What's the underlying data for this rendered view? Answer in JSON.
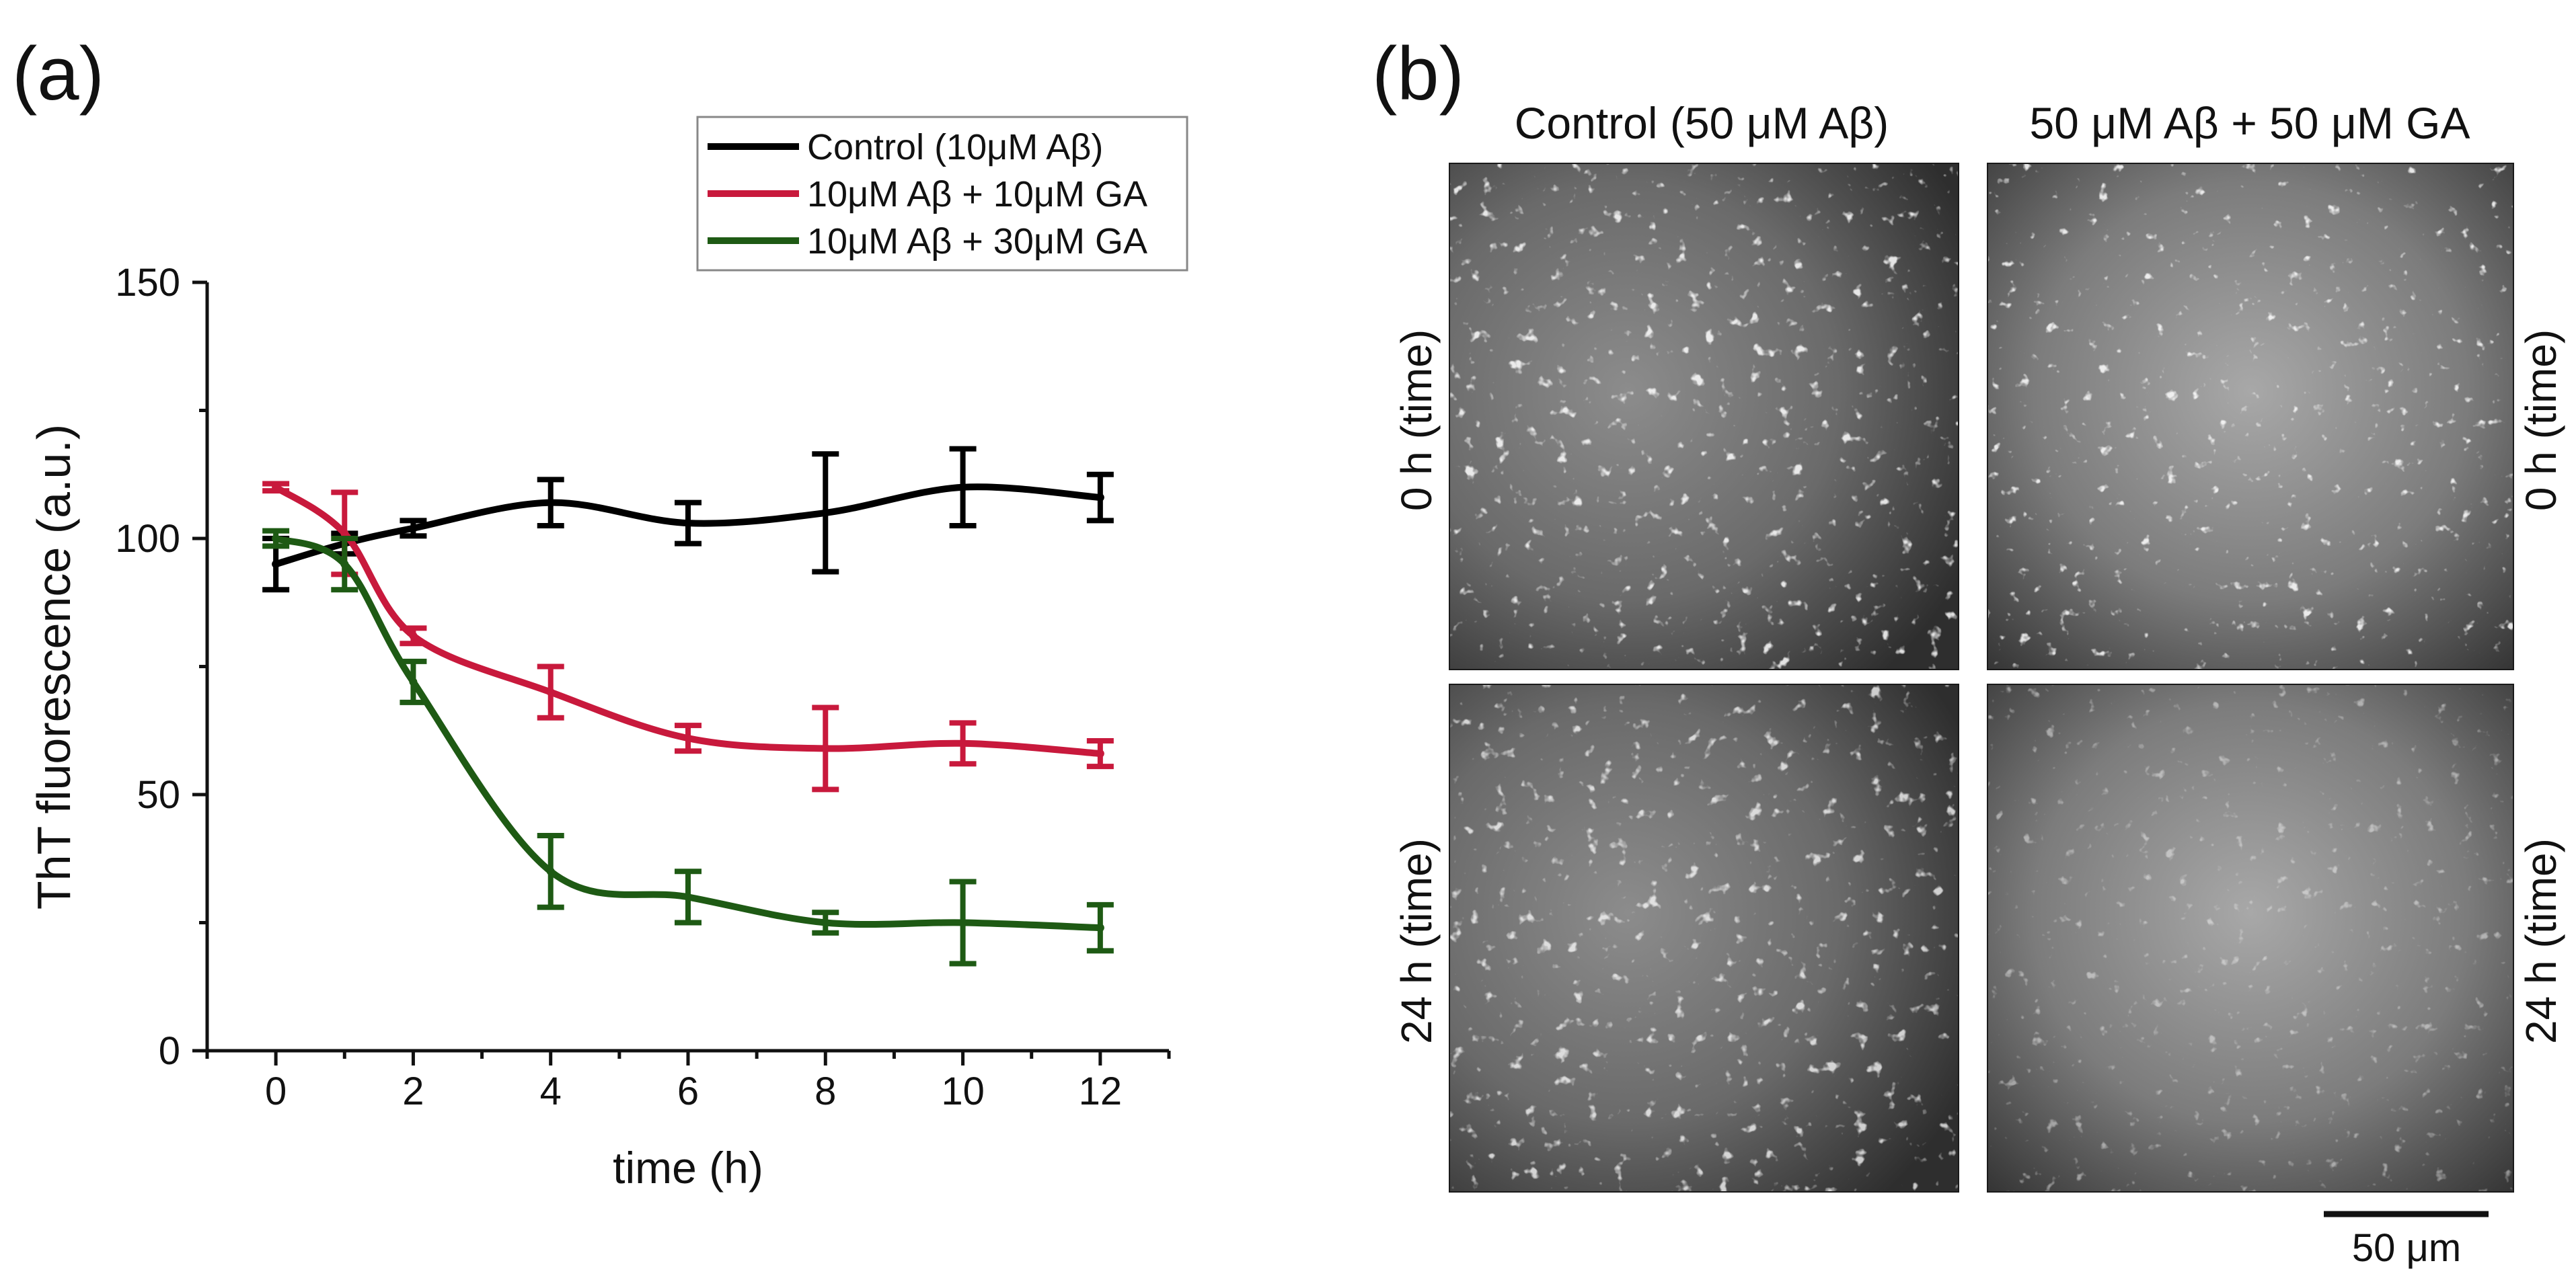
{
  "panels": {
    "a": {
      "label": "(a)"
    },
    "b": {
      "label": "(b)",
      "column_titles": [
        "Control (50 μM Aβ)",
        "50 μM Aβ + 50 μM GA"
      ],
      "row_labels": [
        "0 h (time)",
        "24 h (time)"
      ],
      "scale_bar_label": "50 μm"
    }
  },
  "chart_data": {
    "type": "line",
    "title": "",
    "xlabel": "time (h)",
    "ylabel": "ThT fluorescence (a.u.)",
    "xlim": [
      -1,
      13
    ],
    "ylim": [
      0,
      150
    ],
    "xticks": [
      0,
      2,
      4,
      6,
      8,
      10,
      12
    ],
    "yticks": [
      0,
      50,
      100,
      150
    ],
    "grid": false,
    "legend_position": "top-right",
    "error_bars": true,
    "series": [
      {
        "name": "Control (10μM Aβ)",
        "color": "#000000",
        "x": [
          0,
          1,
          2,
          4,
          6,
          8,
          10,
          12
        ],
        "y": [
          95,
          99,
          102,
          107,
          103,
          105,
          110,
          108
        ],
        "err": [
          5,
          2,
          1.5,
          4.5,
          4,
          11.5,
          7.5,
          4.5
        ]
      },
      {
        "name": "10μM Aβ + 10μM GA",
        "color": "#c8193c",
        "x": [
          0,
          1,
          2,
          4,
          6,
          8,
          10,
          12
        ],
        "y": [
          110,
          101,
          81,
          70,
          61,
          59,
          60,
          58
        ],
        "err": [
          0.7,
          8,
          1.5,
          5,
          2.5,
          8,
          4,
          2.5
        ]
      },
      {
        "name": "10μM Aβ + 30μM GA",
        "color": "#1e5a14",
        "x": [
          0,
          1,
          2,
          4,
          6,
          8,
          10,
          12
        ],
        "y": [
          100,
          95,
          72,
          35,
          30,
          25,
          25,
          24
        ],
        "err": [
          1.5,
          5,
          4,
          7,
          5,
          2,
          8,
          4.5
        ]
      }
    ]
  }
}
